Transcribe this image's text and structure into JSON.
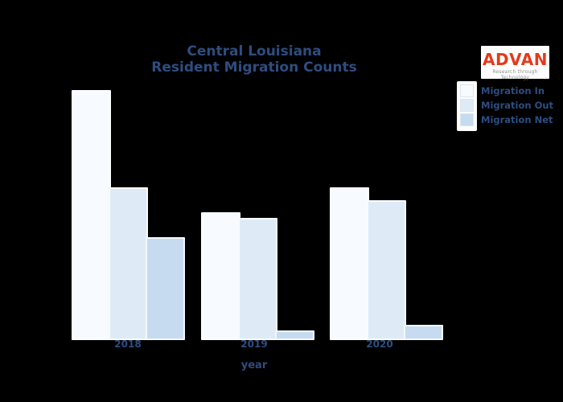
{
  "page": {
    "background_color": "#000000",
    "text_color": "#2e4d80"
  },
  "title": {
    "line1": "Central Louisiana",
    "line2": "Resident Migration Counts"
  },
  "logo": {
    "text": "ADVAN",
    "tagline": "Research through Technology",
    "text_color": "#e5391b",
    "tagline_color": "#8d8d8d",
    "background_color": "#ffffff"
  },
  "legend": {
    "items": [
      {
        "label": "Migration In",
        "color": "#f7fbff"
      },
      {
        "label": "Migration Out",
        "color": "#deebf7"
      },
      {
        "label": "Migration Net",
        "color": "#c6dbef"
      }
    ]
  },
  "x_axis": {
    "title": "year",
    "ticks": [
      "2018",
      "2019",
      "2020"
    ]
  },
  "chart_data": {
    "type": "bar",
    "title": "Central Louisiana Resident Migration Counts",
    "categories": [
      "2018",
      "2019",
      "2020"
    ],
    "series": [
      {
        "name": "Migration In",
        "color": "#f7fbff",
        "values": [
          100,
          51,
          61
        ]
      },
      {
        "name": "Migration Out",
        "color": "#deebf7",
        "values": [
          61,
          49,
          56
        ]
      },
      {
        "name": "Migration Net",
        "color": "#c6dbef",
        "values": [
          41,
          4,
          6
        ]
      }
    ],
    "xlabel": "year",
    "ylabel": "",
    "ylim": [
      0,
      105
    ],
    "y_axis_visible": false,
    "grid": false,
    "value_units": "relative-estimate",
    "legend_position": "upper-right",
    "bar_mode": "grouped-overlapping"
  }
}
